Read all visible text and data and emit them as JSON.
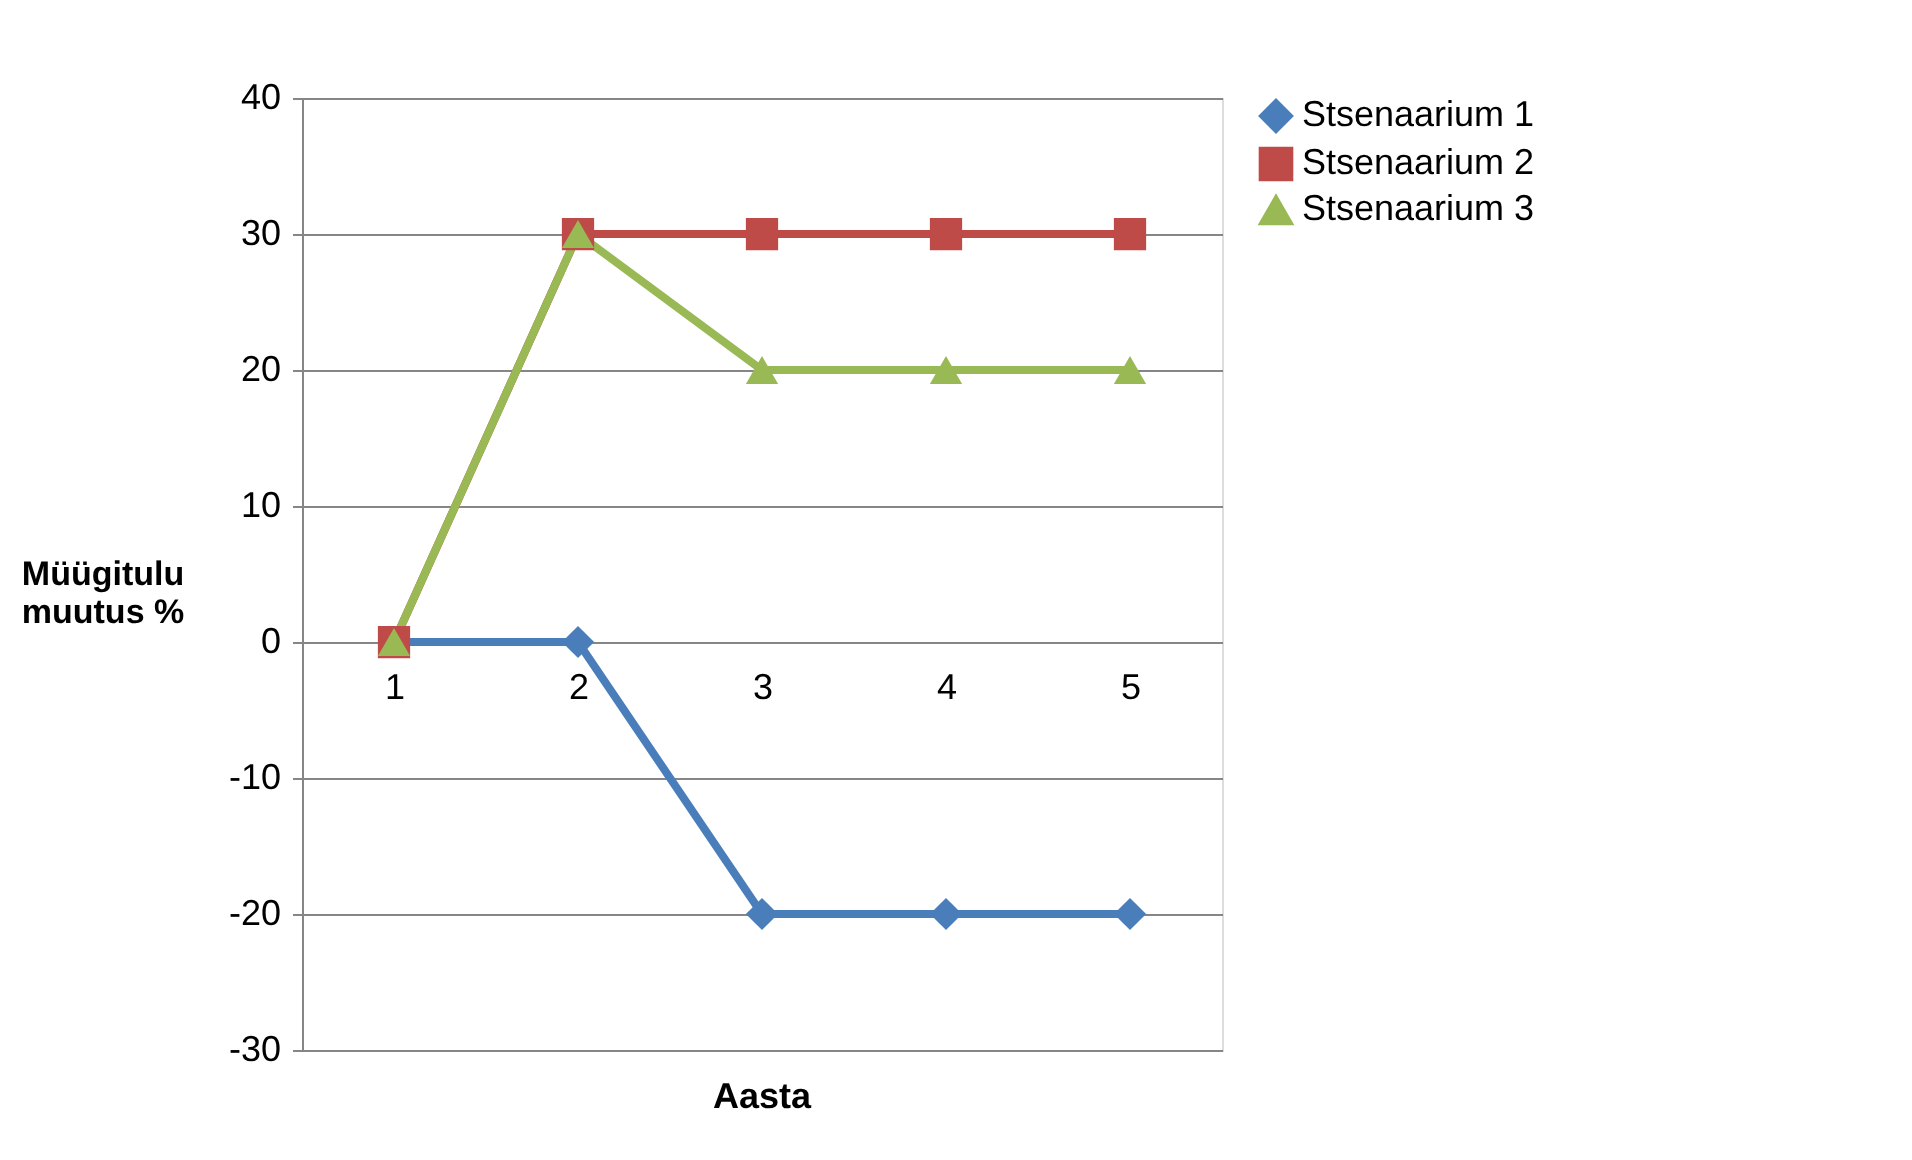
{
  "chart_data": {
    "type": "line",
    "xlabel": "Aasta",
    "ylabel": "Müügitulu muutus %",
    "categories": [
      "1",
      "2",
      "3",
      "4",
      "5"
    ],
    "series": [
      {
        "name": "Stsenaarium 1",
        "color": "#4a7ebb",
        "marker": "diamond",
        "values": [
          0,
          0,
          -20,
          -20,
          -20
        ]
      },
      {
        "name": "Stsenaarium 2",
        "color": "#be4b48",
        "marker": "square",
        "values": [
          0,
          30,
          30,
          30,
          30
        ]
      },
      {
        "name": "Stsenaarium 3",
        "color": "#98b954",
        "marker": "triangle",
        "values": [
          0,
          30,
          20,
          20,
          20
        ]
      }
    ],
    "ylim": [
      -30,
      40
    ],
    "yticks": [
      -30,
      -20,
      -10,
      0,
      10,
      20,
      30,
      40
    ],
    "grid": "y",
    "legend": "right",
    "line_style": "solid"
  }
}
